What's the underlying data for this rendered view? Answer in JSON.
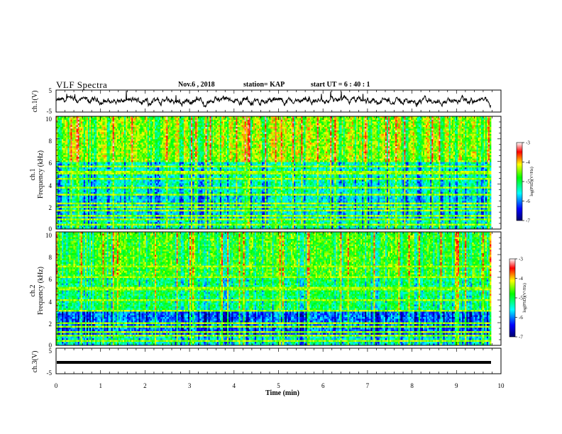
{
  "header": {
    "title": "VLF Spectra",
    "date": "Nov.6 , 2018",
    "station": "station= KAP",
    "start": "start UT = 6 : 40 : 1"
  },
  "chart_data": [
    {
      "type": "line",
      "panel": "ch1-waveform",
      "ylabel": "ch.1(V)",
      "ylim": [
        -5,
        5
      ],
      "yticks": [
        "5",
        "-5"
      ],
      "xlim": [
        0,
        10
      ],
      "description_free": true
    },
    {
      "type": "heatmap",
      "panel": "ch1-spectrogram",
      "ylabel_top": "ch.1",
      "ylabel": "Frequency (kHz)",
      "xlim": [
        0,
        10
      ],
      "ylim": [
        0,
        10
      ],
      "yticks": [
        "0",
        "2",
        "4",
        "6",
        "8",
        "10"
      ],
      "colorbar": {
        "label": "log(PSD)(V²/Hz)",
        "ticks": [
          "-3",
          "-4",
          "-5",
          "-6",
          "-7"
        ],
        "range": [
          -7,
          -3
        ],
        "colors": [
          "#00008b",
          "#0000ff",
          "#00ffff",
          "#00ff00",
          "#ffff00",
          "#ff0000",
          "#ffffff"
        ]
      },
      "strong_bands_khz": [
        0.4,
        0.8,
        1.2,
        1.6,
        2.0,
        2.3,
        3.0,
        3.7,
        4.4,
        5.0,
        5.5
      ]
    },
    {
      "type": "heatmap",
      "panel": "ch2-spectrogram",
      "ylabel_top": "ch.2",
      "ylabel": "Frequency (kHz)",
      "xlim": [
        0,
        10
      ],
      "ylim": [
        0,
        10
      ],
      "yticks": [
        "0",
        "2",
        "4",
        "6",
        "8",
        "10"
      ],
      "colorbar": {
        "label": "log(PSD)(V²/Hz)",
        "ticks": [
          "-3",
          "-4",
          "-5",
          "-6",
          "-7"
        ],
        "range": [
          -7,
          -3
        ]
      },
      "strong_bands_khz": [
        0.4,
        0.8,
        1.2,
        1.6,
        2.0,
        3.0,
        4.0,
        5.0,
        6.0,
        7.0
      ]
    },
    {
      "type": "line",
      "panel": "ch3-waveform",
      "ylabel": "ch.3(V)",
      "ylim": [
        -5,
        5
      ],
      "yticks": [
        "5",
        "-5"
      ],
      "constant_value": 0,
      "xlim": [
        0,
        10
      ],
      "xlabel": "Time (min)",
      "xticks": [
        "0",
        "1",
        "2",
        "3",
        "4",
        "5",
        "6",
        "7",
        "8",
        "9",
        "10"
      ]
    }
  ]
}
